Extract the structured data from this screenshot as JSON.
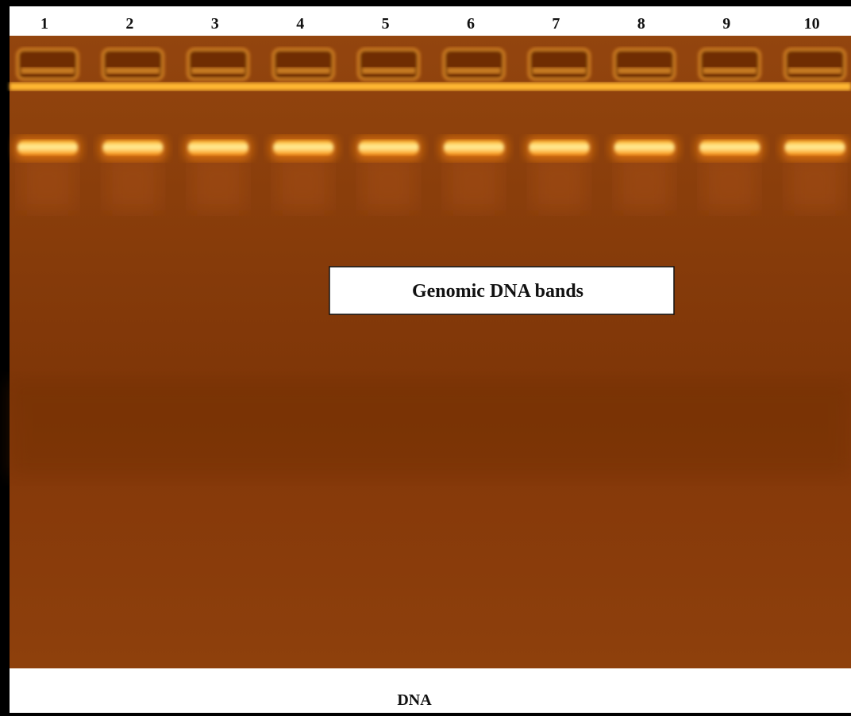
{
  "lanes": [
    "1",
    "2",
    "3",
    "4",
    "5",
    "6",
    "7",
    "8",
    "9",
    "10"
  ],
  "annotation": "Genomic DNA bands",
  "caption": "DNA"
}
